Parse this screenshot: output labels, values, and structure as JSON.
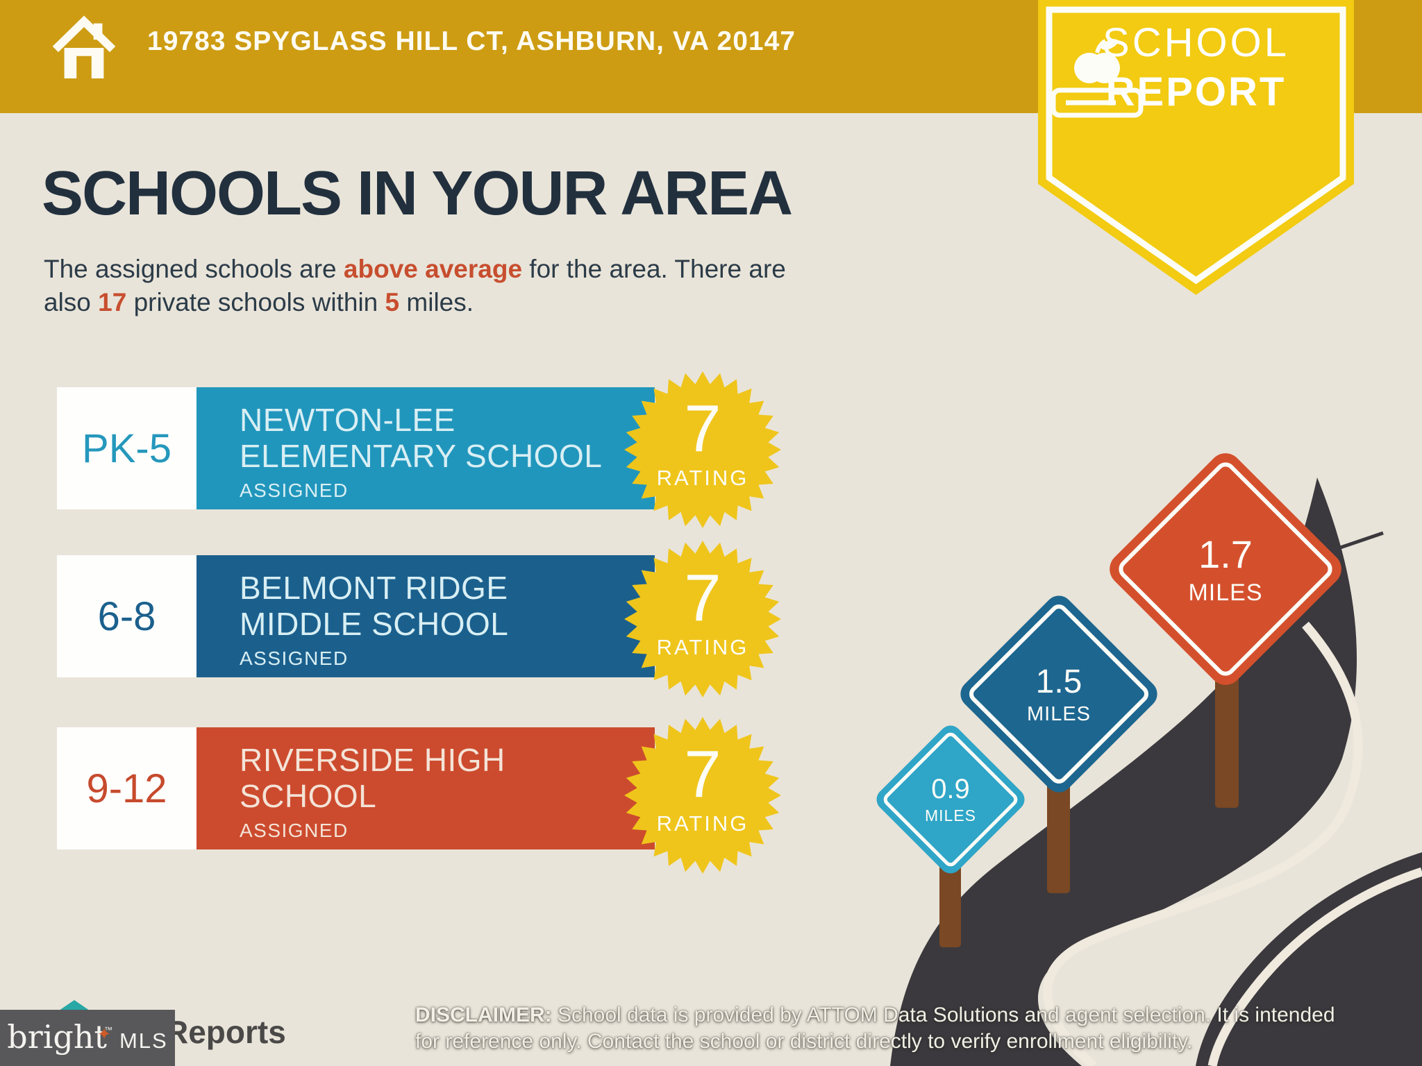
{
  "header": {
    "address": "19783 SPYGLASS HILL CT, ASHBURN, VA 20147"
  },
  "pennant": {
    "line1": "SCHOOL",
    "line2": "REPORT"
  },
  "title": "SCHOOLS IN YOUR AREA",
  "intro": {
    "l1a": "The assigned schools are ",
    "l1b": "above average",
    "l1c": " for the area. There are",
    "l2a": "also ",
    "l2b": "17",
    "l2c": " private schools within ",
    "l2d": "5",
    "l2e": " miles."
  },
  "schools": [
    {
      "grades": "PK-5",
      "name_line1": "NEWTON-LEE",
      "name_line2": "ELEMENTARY SCHOOL",
      "status": "ASSIGNED",
      "rating": "7",
      "rating_label": "RATING",
      "color": "#2196BC"
    },
    {
      "grades": "6-8",
      "name_line1": "BELMONT RIDGE",
      "name_line2": "MIDDLE SCHOOL",
      "status": "ASSIGNED",
      "rating": "7",
      "rating_label": "RATING",
      "color": "#1B608D"
    },
    {
      "grades": "9-12",
      "name_line1": "RIVERSIDE HIGH",
      "name_line2": "SCHOOL",
      "status": "ASSIGNED",
      "rating": "7",
      "rating_label": "RATING",
      "color": "#CC4B2E"
    }
  ],
  "signs": [
    {
      "distance": "0.9",
      "unit": "MILES",
      "color": "#2FA5C7"
    },
    {
      "distance": "1.5",
      "unit": "MILES",
      "color": "#1D6690"
    },
    {
      "distance": "1.7",
      "unit": "MILES",
      "color": "#D4502D"
    }
  ],
  "footer": {
    "partial_logo_text": "Reports",
    "brand": "bright",
    "brand_tm": "™",
    "brand_suffix": "MLS",
    "disclaimer_label": "DISCLAIMER:",
    "disclaimer_line1_rest": " School data is provided by ATTOM Data Solutions and agent selection. It is intended",
    "disclaimer_line2": "for reference only. Contact the school or district directly to verify enrollment eligibility."
  },
  "colors": {
    "topbar_gold": "#CD9C12",
    "pennant_yellow": "#F2CB12",
    "starburst_yellow": "#EFC51B",
    "background_cream": "#E9E4D9",
    "heading_navy": "#22303E",
    "accent_orange": "#C74E2F",
    "road_charcoal": "#3B393D",
    "road_line": "#EFE9DE",
    "post_brown": "#7A4824",
    "mls_box_gray": "#58585A"
  }
}
